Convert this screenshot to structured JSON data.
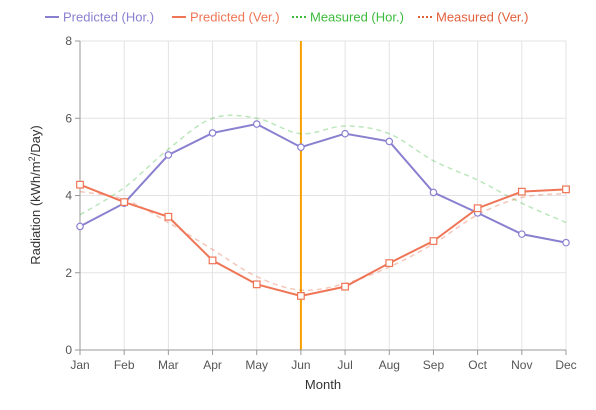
{
  "chart_data": {
    "type": "line",
    "categories": [
      "Jan",
      "Feb",
      "Mar",
      "Apr",
      "May",
      "Jun",
      "Jul",
      "Aug",
      "Sep",
      "Oct",
      "Nov",
      "Dec"
    ],
    "xlabel": "Month",
    "ylabel_parts": {
      "before_sup1": "Radiation (kWh/m",
      "sup1": "2",
      "mid": "/Day",
      "sup2": "",
      "after": ")"
    },
    "ylim": [
      0,
      8
    ],
    "yticks": [
      0,
      2,
      4,
      6,
      8
    ],
    "grid": true,
    "legend_position": "top",
    "highlight": {
      "category": "Jun",
      "color": "#f5a000"
    },
    "series": [
      {
        "name": "Predicted (Hor.)",
        "color": "#8a80d0",
        "style": "solid",
        "marker": "circle",
        "values": [
          3.2,
          3.8,
          5.05,
          5.62,
          5.85,
          5.25,
          5.6,
          5.4,
          4.08,
          3.55,
          3.0,
          2.78
        ]
      },
      {
        "name": "Predicted (Ver.)",
        "color": "#ef7556",
        "style": "solid",
        "marker": "square",
        "values": [
          4.28,
          3.83,
          3.45,
          2.32,
          1.7,
          1.4,
          1.64,
          2.25,
          2.82,
          3.67,
          4.1,
          4.16
        ]
      },
      {
        "name": "Measured (Hor.)",
        "color": "#3dbb3d",
        "style": "dotted",
        "marker": "none",
        "values": [
          3.5,
          4.2,
          5.2,
          6.0,
          6.0,
          5.6,
          5.8,
          5.6,
          4.9,
          4.4,
          3.8,
          3.3
        ]
      },
      {
        "name": "Measured (Ver.)",
        "color": "#e0603c",
        "style": "dotted",
        "marker": "none",
        "values": [
          4.1,
          3.9,
          3.3,
          2.6,
          1.9,
          1.55,
          1.72,
          2.15,
          2.75,
          3.5,
          3.95,
          4.05
        ]
      }
    ]
  }
}
